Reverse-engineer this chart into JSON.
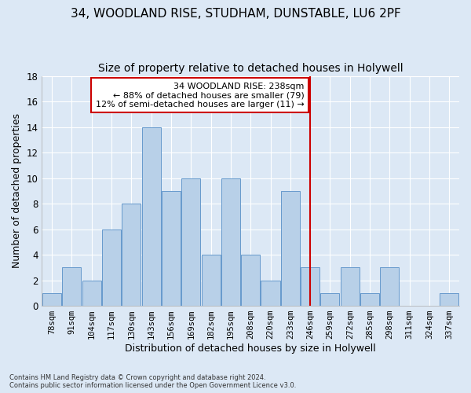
{
  "title_line1": "34, WOODLAND RISE, STUDHAM, DUNSTABLE, LU6 2PF",
  "title_line2": "Size of property relative to detached houses in Holywell",
  "xlabel": "Distribution of detached houses by size in Holywell",
  "ylabel": "Number of detached properties",
  "footnote": "Contains HM Land Registry data © Crown copyright and database right 2024.\nContains public sector information licensed under the Open Government Licence v3.0.",
  "bar_labels": [
    "78sqm",
    "91sqm",
    "104sqm",
    "117sqm",
    "130sqm",
    "143sqm",
    "156sqm",
    "169sqm",
    "182sqm",
    "195sqm",
    "208sqm",
    "220sqm",
    "233sqm",
    "246sqm",
    "259sqm",
    "272sqm",
    "285sqm",
    "298sqm",
    "311sqm",
    "324sqm",
    "337sqm"
  ],
  "bar_values": [
    1,
    3,
    2,
    6,
    8,
    14,
    9,
    10,
    4,
    10,
    4,
    2,
    9,
    3,
    1,
    3,
    1,
    3,
    0,
    0,
    1
  ],
  "bar_color": "#b8d0e8",
  "bar_edgecolor": "#6699cc",
  "vline_x_index": 13.0,
  "annotation_text": "34 WOODLAND RISE: 238sqm\n← 88% of detached houses are smaller (79)\n12% of semi-detached houses are larger (11) →",
  "annotation_box_color": "#ffffff",
  "annotation_box_edgecolor": "#cc0000",
  "vline_color": "#cc0000",
  "ylim": [
    0,
    18
  ],
  "yticks": [
    0,
    2,
    4,
    6,
    8,
    10,
    12,
    14,
    16,
    18
  ],
  "background_color": "#dce8f5",
  "grid_color": "#ffffff",
  "title_fontsize": 11,
  "subtitle_fontsize": 10,
  "axis_label_fontsize": 9,
  "tick_fontsize": 7.5,
  "annotation_fontsize": 8
}
